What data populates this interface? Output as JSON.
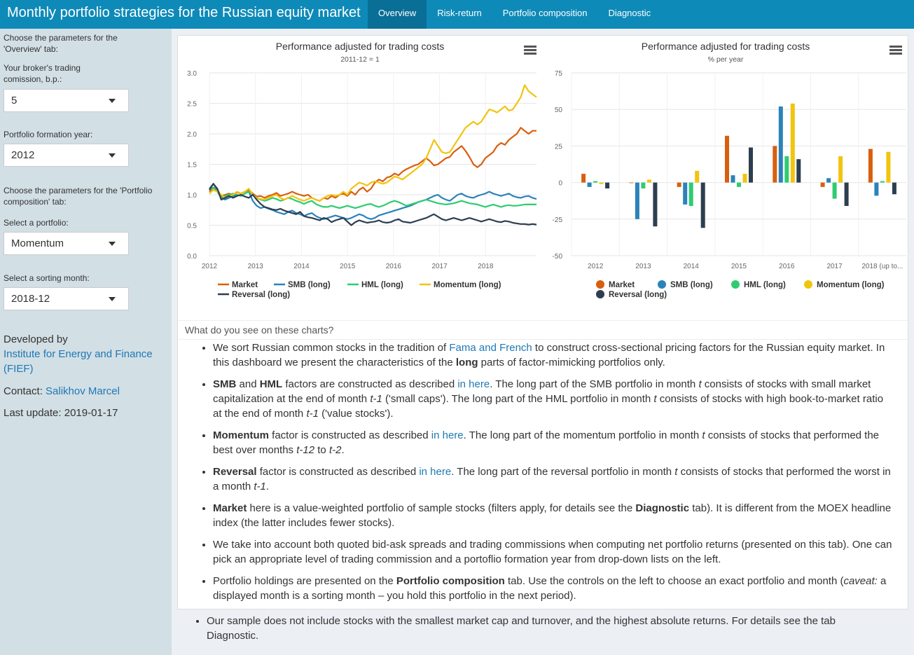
{
  "header": {
    "title": "Monthly portfolio strategies for the Russian equity market",
    "tabs": [
      {
        "label": "Overview",
        "active": true
      },
      {
        "label": "Risk-return",
        "active": false
      },
      {
        "label": "Portfolio composition",
        "active": false
      },
      {
        "label": "Diagnostic",
        "active": false
      }
    ]
  },
  "sidebar": {
    "overview_heading": "Choose the parameters for the 'Overview' tab:",
    "commission_label": "Your broker's trading comission, b.p.:",
    "commission_value": "5",
    "year_label": "Portfolio formation year:",
    "year_value": "2012",
    "composition_heading": "Choose the parameters for the 'Portfolio composition' tab:",
    "portfolio_label": "Select a portfolio:",
    "portfolio_value": "Momentum",
    "month_label": "Select a sorting month:",
    "month_value": "2018-12",
    "developed_by": "Developed by",
    "institute": "Institute for Energy and Finance (FIEF)",
    "contact_label": "Contact:",
    "contact_name": "Salikhov Marcel",
    "last_update": "Last update: 2019-01-17"
  },
  "colors": {
    "header": "#0e8ab8",
    "market": "#d95f0e",
    "smb": "#2b83ba",
    "hml": "#2ecc71",
    "momentum": "#f1c40f",
    "reversal": "#2c3e50"
  },
  "chart_data": [
    {
      "type": "line",
      "title": "Performance adjusted for trading costs",
      "subtitle": "2011-12 = 1",
      "ylim": [
        0,
        3
      ],
      "yticks": [
        "0.0",
        "0.5",
        "1.0",
        "1.5",
        "2.0",
        "2.5",
        "3.0"
      ],
      "xticks": [
        "2012",
        "2013",
        "2014",
        "2015",
        "2016",
        "2017",
        "2018"
      ],
      "x_start": "2012-01",
      "x_end": "2018-12",
      "series": [
        {
          "name": "Market",
          "color": "#d95f0e",
          "values": [
            1.05,
            1.12,
            1.08,
            0.98,
            1.0,
            1.02,
            1.0,
            1.04,
            1.02,
            1.05,
            1.08,
            1.02,
            0.97,
            0.98,
            0.95,
            0.98,
            1.0,
            1.03,
            0.98,
            1.0,
            1.02,
            1.05,
            1.02,
            1.0,
            0.98,
            1.0,
            0.95,
            0.92,
            0.9,
            0.95,
            0.93,
            0.98,
            0.95,
            1.0,
            1.02,
            0.98,
            1.05,
            1.0,
            1.08,
            1.12,
            1.05,
            1.1,
            1.2,
            1.25,
            1.22,
            1.28,
            1.3,
            1.35,
            1.32,
            1.38,
            1.42,
            1.45,
            1.48,
            1.5,
            1.55,
            1.6,
            1.55,
            1.48,
            1.5,
            1.55,
            1.6,
            1.62,
            1.7,
            1.75,
            1.8,
            1.72,
            1.62,
            1.5,
            1.45,
            1.5,
            1.6,
            1.65,
            1.7,
            1.8,
            1.85,
            1.82,
            1.9,
            1.95,
            2.0,
            2.1,
            2.05,
            2.0,
            2.05,
            2.05
          ]
        },
        {
          "name": "SMB (long)",
          "color": "#2b83ba",
          "values": [
            1.1,
            1.18,
            1.08,
            0.95,
            0.92,
            0.95,
            0.98,
            1.0,
            0.98,
            1.02,
            1.05,
            0.9,
            0.82,
            0.78,
            0.8,
            0.77,
            0.75,
            0.72,
            0.7,
            0.68,
            0.72,
            0.74,
            0.7,
            0.68,
            0.65,
            0.68,
            0.7,
            0.65,
            0.62,
            0.6,
            0.62,
            0.64,
            0.66,
            0.64,
            0.62,
            0.6,
            0.62,
            0.65,
            0.68,
            0.66,
            0.62,
            0.6,
            0.62,
            0.66,
            0.68,
            0.7,
            0.72,
            0.74,
            0.76,
            0.78,
            0.8,
            0.82,
            0.85,
            0.88,
            0.9,
            0.92,
            0.95,
            0.98,
            1.0,
            0.95,
            0.92,
            0.9,
            0.95,
            1.0,
            1.02,
            0.98,
            0.96,
            0.95,
            0.98,
            1.0,
            1.02,
            1.05,
            1.02,
            1.0,
            0.98,
            1.0,
            1.02,
            0.98,
            0.96,
            0.95,
            0.97,
            0.98,
            0.95,
            0.93
          ]
        },
        {
          "name": "HML (long)",
          "color": "#2ecc71",
          "values": [
            1.08,
            1.12,
            1.05,
            0.95,
            0.98,
            1.0,
            1.02,
            1.0,
            0.98,
            1.02,
            1.05,
            1.0,
            0.95,
            0.92,
            0.9,
            0.92,
            0.95,
            0.93,
            0.9,
            0.92,
            0.95,
            0.93,
            0.9,
            0.88,
            0.85,
            0.88,
            0.9,
            0.85,
            0.82,
            0.8,
            0.8,
            0.82,
            0.8,
            0.78,
            0.8,
            0.82,
            0.8,
            0.78,
            0.8,
            0.82,
            0.84,
            0.85,
            0.82,
            0.8,
            0.82,
            0.85,
            0.88,
            0.9,
            0.88,
            0.85,
            0.82,
            0.84,
            0.86,
            0.88,
            0.9,
            0.92,
            0.9,
            0.88,
            0.86,
            0.85,
            0.84,
            0.85,
            0.86,
            0.88,
            0.9,
            0.88,
            0.86,
            0.85,
            0.84,
            0.82,
            0.8,
            0.82,
            0.84,
            0.82,
            0.8,
            0.82,
            0.83,
            0.82,
            0.82,
            0.83,
            0.84,
            0.84,
            0.84,
            0.84
          ]
        },
        {
          "name": "Momentum (long)",
          "color": "#f1c40f",
          "values": [
            1.02,
            1.08,
            1.05,
            1.0,
            0.95,
            0.98,
            1.0,
            1.05,
            1.02,
            1.05,
            1.1,
            1.0,
            0.95,
            0.93,
            0.92,
            0.95,
            0.98,
            1.0,
            0.95,
            0.92,
            0.95,
            0.98,
            0.95,
            0.92,
            0.9,
            0.93,
            0.95,
            0.92,
            0.9,
            0.95,
            0.98,
            1.0,
            0.98,
            1.0,
            1.05,
            1.0,
            1.1,
            1.15,
            1.2,
            1.18,
            1.15,
            1.2,
            1.22,
            1.2,
            1.18,
            1.2,
            1.25,
            1.3,
            1.28,
            1.25,
            1.3,
            1.35,
            1.4,
            1.45,
            1.5,
            1.6,
            1.75,
            1.9,
            1.8,
            1.7,
            1.68,
            1.7,
            1.8,
            1.9,
            2.0,
            2.1,
            2.15,
            2.2,
            2.15,
            2.2,
            2.3,
            2.4,
            2.38,
            2.35,
            2.4,
            2.45,
            2.38,
            2.4,
            2.5,
            2.6,
            2.8,
            2.7,
            2.65,
            2.6
          ]
        },
        {
          "name": "Reversal (long)",
          "color": "#2c3e50",
          "values": [
            1.08,
            1.18,
            1.1,
            0.92,
            0.95,
            0.98,
            0.95,
            0.98,
            1.0,
            0.97,
            0.95,
            1.0,
            0.92,
            0.85,
            0.8,
            0.78,
            0.76,
            0.75,
            0.77,
            0.74,
            0.72,
            0.7,
            0.68,
            0.72,
            0.65,
            0.63,
            0.62,
            0.6,
            0.58,
            0.62,
            0.6,
            0.55,
            0.58,
            0.6,
            0.62,
            0.56,
            0.5,
            0.55,
            0.58,
            0.56,
            0.54,
            0.55,
            0.56,
            0.58,
            0.55,
            0.54,
            0.55,
            0.58,
            0.6,
            0.56,
            0.55,
            0.54,
            0.56,
            0.58,
            0.6,
            0.62,
            0.65,
            0.68,
            0.64,
            0.6,
            0.58,
            0.6,
            0.62,
            0.6,
            0.58,
            0.6,
            0.62,
            0.6,
            0.58,
            0.56,
            0.58,
            0.6,
            0.58,
            0.56,
            0.55,
            0.57,
            0.56,
            0.54,
            0.53,
            0.52,
            0.52,
            0.51,
            0.52,
            0.51
          ]
        }
      ],
      "legend": "bottom"
    },
    {
      "type": "bar",
      "title": "Performance adjusted for trading costs",
      "subtitle": "% per year",
      "ylim": [
        -50,
        75
      ],
      "yticks": [
        "-50",
        "-25",
        "0",
        "25",
        "50",
        "75"
      ],
      "categories": [
        "2012",
        "2013",
        "2014",
        "2015",
        "2016",
        "2017",
        "2018 (up to..."
      ],
      "series": [
        {
          "name": "Market",
          "color": "#d95f0e",
          "values": [
            6,
            0,
            -3,
            32,
            25,
            -3,
            23
          ]
        },
        {
          "name": "SMB (long)",
          "color": "#2b83ba",
          "values": [
            -3,
            -25,
            -15,
            5,
            52,
            3,
            -9
          ]
        },
        {
          "name": "HML (long)",
          "color": "#2ecc71",
          "values": [
            1,
            -4,
            -16,
            -3,
            18,
            -11,
            1
          ]
        },
        {
          "name": "Momentum (long)",
          "color": "#f1c40f",
          "values": [
            -1,
            2,
            8,
            6,
            54,
            18,
            21
          ]
        },
        {
          "name": "Reversal (long)",
          "color": "#2c3e50",
          "values": [
            -4,
            -30,
            -31,
            24,
            16,
            -16,
            -8
          ]
        }
      ],
      "legend": "bottom"
    }
  ],
  "question": "What do you see on these charts?",
  "bullets": {
    "b1_pre": "We sort Russian common stocks in the tradition of ",
    "b1_link": "Fama and French",
    "b1_mid": " to construct cross-sectional pricing factors for the Russian equity market. In this dashboard we present the characteristics of the ",
    "b1_bold": "long",
    "b1_post": " parts of factor-mimicking portfolios only.",
    "b2_smb": "SMB",
    "b2_and": " and ",
    "b2_hml": "HML",
    "b2_a": " factors are constructed as described ",
    "link_here": "in here",
    "b2_b": ". The long part of the SMB portfolio in month ",
    "t": "t",
    "b2_c": " consists of stocks with small market capitalization at the end of month ",
    "t1": "t-1",
    "b2_d": " ('small caps'). The long part of the HML portfolio in month ",
    "b2_e": " consists of stocks with high book-to-market ratio at the end of month ",
    "b2_f": " ('value stocks').",
    "b3_bold": "Momentum",
    "b3_a": " factor is constructed as described ",
    "b3_b": ". The long part of the momentum portfolio in month ",
    "b3_c": " consists of stocks that performed the best over months ",
    "t12": "t-12",
    "b3_to": " to ",
    "t2": "t-2",
    "dot": ".",
    "b4_bold": "Reversal",
    "b4_a": " factor is constructed as described ",
    "b4_b": ". The long part of the reversal portfolio in month ",
    "b4_c": " consists of stocks that performed the worst in a month ",
    "b5_bold": "Market",
    "b5_a": " here is a value-weighted portfolio of sample stocks (filters apply, for details see the ",
    "b5_diag": "Diagnostic",
    "b5_b": " tab). It is different from the MOEX headline index (the latter includes fewer stocks).",
    "b6": "We take into account both quoted bid-ask spreads and trading commissions when computing net portfolio returns (presented on this tab). One can pick an appropriate level of trading commission and a portoflio formation year from drop-down lists on the left.",
    "b7_a": "Portfolio holdings are presented on the ",
    "b7_bold": "Portfolio composition",
    "b7_b": " tab. Use the controls on the left to choose an exact portfolio and month (",
    "b7_caveat": "caveat:",
    "b7_c": " a displayed month is a sorting month – you hold this portfolio in the next period).",
    "b8_a": "Our sample does not include stocks with the smallest market cap and turnover, and the highest absolute returns. For details see the tab ",
    "b8_bold": "Diagnostic"
  }
}
